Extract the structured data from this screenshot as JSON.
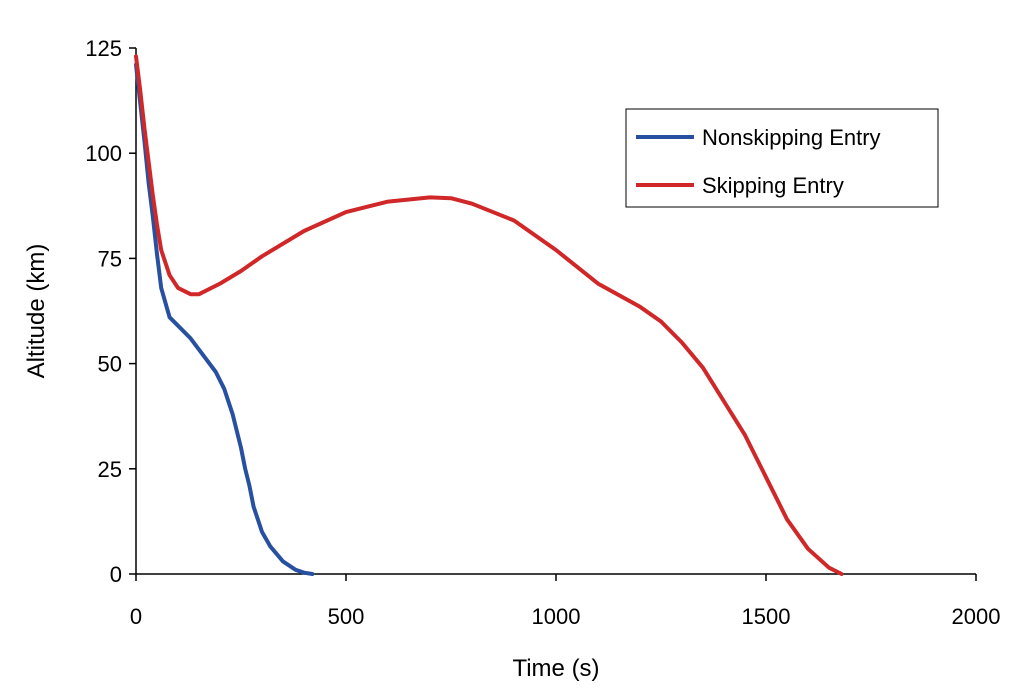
{
  "chart_data": {
    "type": "line",
    "title": "",
    "xlabel": "Time (s)",
    "ylabel": "Altitude (km)",
    "xlim": [
      0,
      2000
    ],
    "ylim": [
      0,
      125
    ],
    "xticks": [
      0,
      500,
      1000,
      1500,
      2000
    ],
    "yticks": [
      0,
      25,
      50,
      75,
      100,
      125
    ],
    "grid": false,
    "legend_position": "top-right",
    "series": [
      {
        "name": "Nonskipping Entry",
        "color": "#2850a0",
        "x": [
          0,
          10,
          20,
          30,
          40,
          50,
          60,
          80,
          100,
          130,
          160,
          190,
          210,
          230,
          250,
          260,
          270,
          280,
          290,
          300,
          320,
          350,
          380,
          400,
          420
        ],
        "y": [
          121,
          112,
          103,
          93,
          85,
          76,
          68,
          61,
          59,
          56,
          52,
          48,
          44,
          38,
          30,
          25,
          21,
          16,
          13,
          10,
          6.5,
          3,
          1,
          0.3,
          0
        ]
      },
      {
        "name": "Skipping Entry",
        "color": "#d02828",
        "x": [
          0,
          10,
          20,
          30,
          40,
          50,
          60,
          80,
          100,
          130,
          150,
          200,
          250,
          300,
          400,
          500,
          600,
          700,
          750,
          800,
          900,
          1000,
          1100,
          1200,
          1250,
          1300,
          1350,
          1400,
          1450,
          1500,
          1550,
          1600,
          1650,
          1680
        ],
        "y": [
          123,
          115,
          106,
          98,
          90,
          83,
          77,
          71,
          68,
          66.5,
          66.5,
          69,
          72,
          75.5,
          81.5,
          86,
          88.5,
          89.5,
          89.3,
          88,
          84,
          77,
          69,
          63.5,
          60,
          55,
          49,
          41,
          33,
          23,
          13,
          6,
          1.5,
          0
        ]
      }
    ]
  }
}
